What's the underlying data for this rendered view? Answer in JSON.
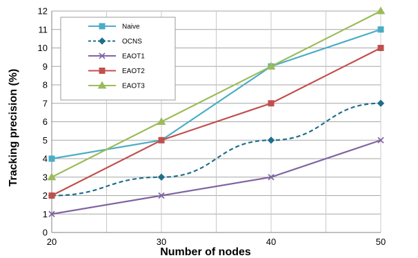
{
  "chart_data": {
    "type": "line",
    "title": "",
    "xlabel": "Number of nodes",
    "ylabel": "Tracking  precision (%)",
    "x": [
      20,
      30,
      40,
      50
    ],
    "xlim": [
      20,
      50
    ],
    "ylim": [
      0,
      12
    ],
    "x_ticks": [
      "20",
      "30",
      "40",
      "50"
    ],
    "y_ticks": [
      "0",
      "1",
      "2",
      "3",
      "4",
      "5",
      "6",
      "7",
      "8",
      "9",
      "10",
      "11",
      "12"
    ],
    "grid": true,
    "legend_position": "top-left",
    "series": [
      {
        "name": "Naive",
        "values": [
          4,
          5,
          9,
          11
        ],
        "color": "#4bacc6",
        "marker": "square",
        "dash": "solid"
      },
      {
        "name": "OCNS",
        "values": [
          2,
          3,
          5,
          7
        ],
        "color": "#1f6f8b",
        "marker": "diamond",
        "dash": "dashed"
      },
      {
        "name": "EAOT1",
        "values": [
          1,
          2,
          3,
          5
        ],
        "color": "#8064a2",
        "marker": "x",
        "dash": "solid"
      },
      {
        "name": "EAOT2",
        "values": [
          2,
          5,
          7,
          10
        ],
        "color": "#c0504d",
        "marker": "square",
        "dash": "solid"
      },
      {
        "name": "EAOT3",
        "values": [
          3,
          6,
          9,
          12
        ],
        "color": "#9bbb59",
        "marker": "triangle",
        "dash": "solid"
      }
    ]
  }
}
